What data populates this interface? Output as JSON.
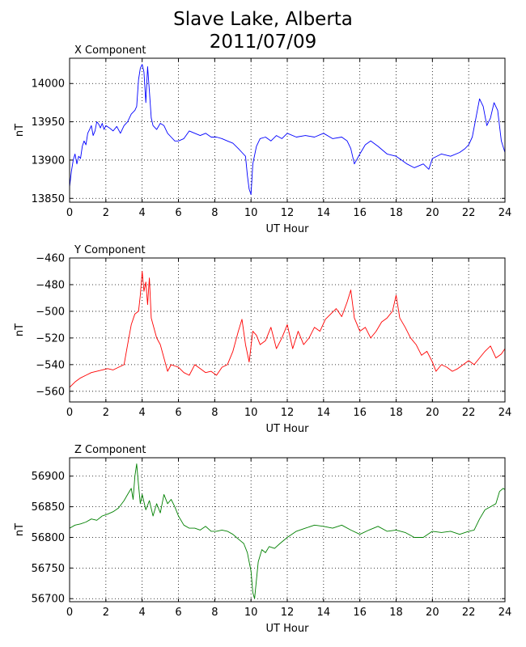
{
  "figure": {
    "title_line1": "Slave Lake, Alberta",
    "title_line2": "2011/07/09"
  },
  "chart_data": [
    {
      "type": "line",
      "title": "X Component",
      "xlabel": "UT Hour",
      "ylabel": "nT",
      "xlim": [
        0,
        24
      ],
      "ylim": [
        13845,
        14033
      ],
      "xticks": [
        0,
        2,
        4,
        6,
        8,
        10,
        12,
        14,
        16,
        18,
        20,
        22,
        24
      ],
      "yticks": [
        13850,
        13900,
        13950,
        14000
      ],
      "grid": true,
      "color": "#0000ff",
      "series": [
        {
          "x": [
            0,
            0.1,
            0.2,
            0.3,
            0.4,
            0.5,
            0.6,
            0.7,
            0.8,
            0.9,
            1.0,
            1.1,
            1.2,
            1.3,
            1.4,
            1.5,
            1.6,
            1.7,
            1.8,
            1.9,
            2.0,
            2.2,
            2.4,
            2.6,
            2.8,
            3.0,
            3.2,
            3.4,
            3.6,
            3.7,
            3.8,
            3.9,
            4.0,
            4.1,
            4.2,
            4.3,
            4.4,
            4.5,
            4.6,
            4.8,
            5.0,
            5.2,
            5.4,
            5.6,
            5.8,
            6.0,
            6.3,
            6.6,
            6.9,
            7.2,
            7.5,
            7.8,
            8.1,
            8.4,
            8.7,
            9.0,
            9.3,
            9.5,
            9.7,
            9.8,
            9.9,
            10.0,
            10.1,
            10.3,
            10.5,
            10.8,
            11.1,
            11.4,
            11.7,
            12.0,
            12.5,
            13.0,
            13.5,
            14.0,
            14.5,
            15.0,
            15.3,
            15.5,
            15.7,
            16.0,
            16.3,
            16.6,
            17.0,
            17.5,
            18.0,
            18.3,
            18.6,
            19.0,
            19.5,
            19.8,
            20.0,
            20.5,
            21.0,
            21.5,
            21.8,
            22.0,
            22.2,
            22.4,
            22.6,
            22.8,
            23.0,
            23.2,
            23.4,
            23.6,
            23.8,
            24.0
          ],
          "values": [
            13865,
            13885,
            13900,
            13908,
            13895,
            13905,
            13902,
            13918,
            13925,
            13920,
            13935,
            13940,
            13945,
            13932,
            13938,
            13950,
            13947,
            13942,
            13948,
            13940,
            13945,
            13942,
            13938,
            13944,
            13935,
            13945,
            13950,
            13960,
            13965,
            13970,
            14005,
            14020,
            14025,
            14015,
            13975,
            14022,
            13990,
            13955,
            13945,
            13940,
            13948,
            13945,
            13935,
            13930,
            13925,
            13925,
            13928,
            13938,
            13935,
            13932,
            13935,
            13930,
            13930,
            13928,
            13925,
            13922,
            13915,
            13910,
            13905,
            13880,
            13862,
            13855,
            13895,
            13918,
            13928,
            13930,
            13925,
            13932,
            13928,
            13935,
            13930,
            13932,
            13930,
            13935,
            13928,
            13930,
            13925,
            13915,
            13895,
            13908,
            13920,
            13925,
            13918,
            13908,
            13905,
            13900,
            13895,
            13890,
            13895,
            13888,
            13902,
            13908,
            13905,
            13910,
            13915,
            13920,
            13930,
            13955,
            13980,
            13970,
            13945,
            13955,
            13975,
            13965,
            13925,
            13910
          ]
        }
      ]
    },
    {
      "type": "line",
      "title": "Y Component",
      "xlabel": "UT Hour",
      "ylabel": "nT",
      "xlim": [
        0,
        24
      ],
      "ylim": [
        -568,
        -460
      ],
      "xticks": [
        0,
        2,
        4,
        6,
        8,
        10,
        12,
        14,
        16,
        18,
        20,
        22,
        24
      ],
      "yticks": [
        -560,
        -540,
        -520,
        -500,
        -480,
        -460
      ],
      "grid": true,
      "color": "#ff0000",
      "series": [
        {
          "x": [
            0,
            0.3,
            0.6,
            0.9,
            1.2,
            1.5,
            1.8,
            2.1,
            2.4,
            2.7,
            3.0,
            3.2,
            3.4,
            3.6,
            3.8,
            3.9,
            4.0,
            4.1,
            4.2,
            4.3,
            4.4,
            4.5,
            4.6,
            4.8,
            5.0,
            5.2,
            5.4,
            5.6,
            5.8,
            6.0,
            6.3,
            6.6,
            6.9,
            7.2,
            7.5,
            7.8,
            8.1,
            8.4,
            8.7,
            9.0,
            9.3,
            9.5,
            9.7,
            9.9,
            10.1,
            10.3,
            10.5,
            10.8,
            11.1,
            11.4,
            11.7,
            12.0,
            12.3,
            12.6,
            12.9,
            13.2,
            13.5,
            13.8,
            14.1,
            14.4,
            14.7,
            15.0,
            15.3,
            15.5,
            15.7,
            16.0,
            16.3,
            16.6,
            16.9,
            17.2,
            17.5,
            17.8,
            18.0,
            18.2,
            18.5,
            18.8,
            19.1,
            19.4,
            19.7,
            20.0,
            20.2,
            20.5,
            20.8,
            21.1,
            21.4,
            21.7,
            22.0,
            22.3,
            22.6,
            22.9,
            23.2,
            23.5,
            23.8,
            24.0
          ],
          "values": [
            -557,
            -553,
            -550,
            -548,
            -546,
            -545,
            -544,
            -543,
            -544,
            -542,
            -540,
            -525,
            -510,
            -502,
            -500,
            -488,
            -470,
            -485,
            -478,
            -495,
            -475,
            -505,
            -510,
            -520,
            -525,
            -535,
            -545,
            -540,
            -541,
            -542,
            -546,
            -548,
            -540,
            -543,
            -546,
            -545,
            -548,
            -542,
            -540,
            -530,
            -515,
            -506,
            -525,
            -538,
            -515,
            -518,
            -525,
            -522,
            -512,
            -528,
            -520,
            -510,
            -528,
            -515,
            -525,
            -520,
            -512,
            -515,
            -506,
            -502,
            -498,
            -504,
            -493,
            -484,
            -505,
            -515,
            -512,
            -520,
            -515,
            -508,
            -505,
            -500,
            -488,
            -505,
            -512,
            -520,
            -525,
            -533,
            -530,
            -538,
            -545,
            -540,
            -542,
            -545,
            -543,
            -540,
            -537,
            -540,
            -535,
            -530,
            -526,
            -535,
            -532,
            -528
          ]
        }
      ]
    },
    {
      "type": "line",
      "title": "Z Component",
      "xlabel": "UT Hour",
      "ylabel": "nT",
      "xlim": [
        0,
        24
      ],
      "ylim": [
        56695,
        56930
      ],
      "xticks": [
        0,
        2,
        4,
        6,
        8,
        10,
        12,
        14,
        16,
        18,
        20,
        22,
        24
      ],
      "yticks": [
        56700,
        56750,
        56800,
        56850,
        56900
      ],
      "grid": true,
      "color": "#008000",
      "series": [
        {
          "x": [
            0,
            0.3,
            0.6,
            0.9,
            1.2,
            1.5,
            1.8,
            2.1,
            2.4,
            2.7,
            3.0,
            3.2,
            3.4,
            3.5,
            3.6,
            3.7,
            3.8,
            3.9,
            4.0,
            4.2,
            4.4,
            4.6,
            4.8,
            5.0,
            5.2,
            5.4,
            5.6,
            5.8,
            6.0,
            6.3,
            6.6,
            6.9,
            7.2,
            7.5,
            7.8,
            8.1,
            8.4,
            8.7,
            9.0,
            9.2,
            9.4,
            9.6,
            9.8,
            9.9,
            10.0,
            10.1,
            10.2,
            10.4,
            10.6,
            10.8,
            11.0,
            11.3,
            11.6,
            12.0,
            12.5,
            13.0,
            13.5,
            14.0,
            14.5,
            15.0,
            15.5,
            16.0,
            16.5,
            17.0,
            17.5,
            18.0,
            18.5,
            19.0,
            19.5,
            20.0,
            20.5,
            21.0,
            21.5,
            22.0,
            22.3,
            22.6,
            22.9,
            23.2,
            23.5,
            23.7,
            23.9,
            24.0
          ],
          "values": [
            56815,
            56820,
            56822,
            56825,
            56830,
            56828,
            56835,
            56838,
            56842,
            56848,
            56860,
            56870,
            56880,
            56862,
            56900,
            56920,
            56885,
            56855,
            56870,
            56845,
            56860,
            56835,
            56855,
            56840,
            56870,
            56855,
            56862,
            56850,
            56835,
            56820,
            56815,
            56815,
            56812,
            56818,
            56810,
            56810,
            56812,
            56810,
            56805,
            56800,
            56795,
            56790,
            56775,
            56760,
            56745,
            56710,
            56700,
            56760,
            56780,
            56775,
            56785,
            56782,
            56790,
            56800,
            56810,
            56815,
            56820,
            56818,
            56815,
            56820,
            56812,
            56805,
            56812,
            56818,
            56810,
            56812,
            56808,
            56800,
            56800,
            56810,
            56808,
            56810,
            56805,
            56810,
            56812,
            56830,
            56845,
            56850,
            56855,
            56875,
            56880,
            56878
          ]
        }
      ]
    }
  ]
}
